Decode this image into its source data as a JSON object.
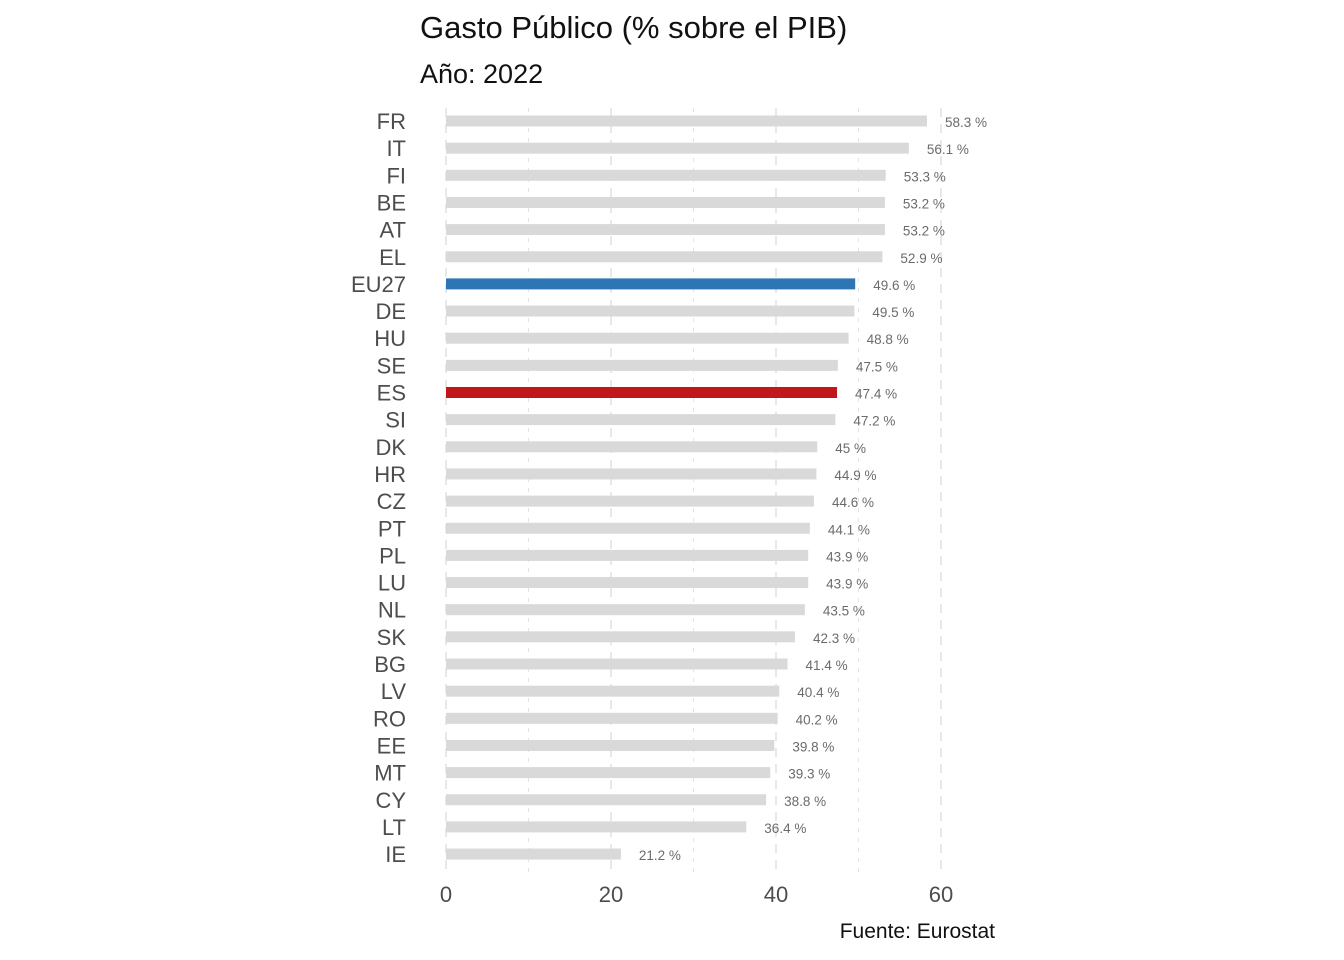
{
  "chart_data": {
    "type": "bar",
    "orientation": "horizontal",
    "title": "Gasto Público (% sobre el PIB)",
    "subtitle": "Año: 2022",
    "caption": "Fuente: Eurostat",
    "xlim": [
      0,
      65
    ],
    "xticks": [
      0,
      20,
      40,
      60
    ],
    "grid": "vertical dashed",
    "value_suffix": " %",
    "categories": [
      "FR",
      "IT",
      "FI",
      "BE",
      "AT",
      "EL",
      "EU27",
      "DE",
      "HU",
      "SE",
      "ES",
      "SI",
      "DK",
      "HR",
      "CZ",
      "PT",
      "PL",
      "LU",
      "NL",
      "SK",
      "BG",
      "LV",
      "RO",
      "EE",
      "MT",
      "CY",
      "LT",
      "IE"
    ],
    "values": [
      58.3,
      56.1,
      53.3,
      53.2,
      53.2,
      52.9,
      49.6,
      49.5,
      48.8,
      47.5,
      47.4,
      47.2,
      45,
      44.9,
      44.6,
      44.1,
      43.9,
      43.9,
      43.5,
      42.3,
      41.4,
      40.4,
      40.2,
      39.8,
      39.3,
      38.8,
      36.4,
      21.2
    ],
    "colors": {
      "default": "#d9d9d9",
      "EU27": "#2e75b6",
      "ES": "#c0171d",
      "grid": "#dedede"
    }
  }
}
